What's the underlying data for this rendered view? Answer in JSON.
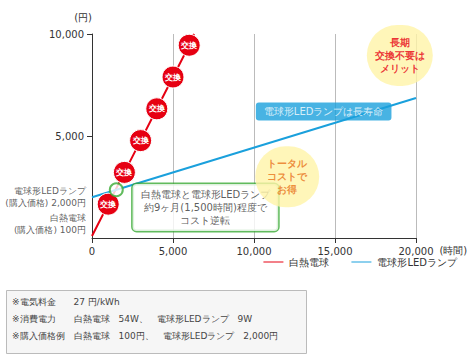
{
  "chart_data": {
    "type": "line",
    "ylabel": "(円)",
    "xlabel": "(時間)",
    "xlim": [
      0,
      20000
    ],
    "xticks": [
      0,
      {
        "value": 5000,
        "label": "5,000"
      },
      {
        "value": 10000,
        "label": "10,000"
      },
      {
        "value": 15000,
        "label": "15,000"
      },
      {
        "value": 20000,
        "label": "20,000"
      }
    ],
    "ylim": [
      0,
      10000
    ],
    "yticks": [
      {
        "value": 5000,
        "label": "5,000"
      },
      {
        "value": 10000,
        "label": "10,000"
      }
    ],
    "grid": true,
    "legend": "bottom",
    "series": [
      {
        "name": "白熱電球",
        "color": "#e60012",
        "marker": "circle",
        "x": [
          0,
          1000,
          2000,
          3000,
          4000,
          5000,
          6000,
          6300
        ],
        "values": [
          100,
          1658,
          3216,
          4774,
          6332,
          7890,
          9448,
          10000
        ],
        "point_labels": [
          null,
          "交換",
          "交換",
          "交換",
          "交換",
          "交換",
          "交換",
          null
        ]
      },
      {
        "name": "電球形LEDランプ",
        "color": "#1aa0dc",
        "x": [
          0,
          20000
        ],
        "values": [
          2000,
          6860
        ]
      }
    ],
    "annotations": [
      {
        "text": "電球形LEDランプ\n(購入価格) 2,000円",
        "x": 0,
        "y": 2000
      },
      {
        "text": "白熱電球\n(購入価格) 100円",
        "x": 0,
        "y": 100
      },
      {
        "text": "白熱電球と電球形LEDランプ\n約9ヶ月(1,500時間)程度で\nコスト逆転",
        "x": 7000,
        "y": 1500,
        "point": [
          1500,
          2365
        ]
      },
      {
        "text": "電球形LEDランプは長寿命",
        "x": 14300,
        "y": 6200
      },
      {
        "text": "トータル\nコストで\nお得",
        "x": 12050,
        "y": 3000
      },
      {
        "text": "長期\n交換不要は\nメリット",
        "x": 19000,
        "y": 8950
      }
    ],
    "notes": [
      "※電気料金　　27 円/kWh",
      "※消費電力　　白熱電球　54W、　電球形LEDランプ　9W",
      "※購入価格例　白熱電球　100円、　電球形LEDランプ　2,000円"
    ]
  }
}
